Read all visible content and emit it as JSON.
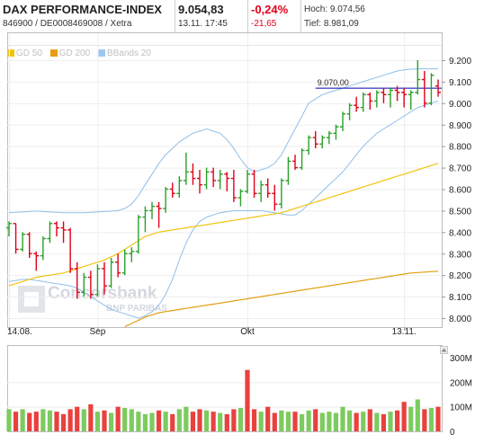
{
  "header": {
    "name": "DAX PERFORMANCE-INDEX",
    "ids": "846900 / DE0008469008 / Xetra",
    "price": "9.054,83",
    "datetime": "13.11. 17:45",
    "change_pct": "-0,24%",
    "change_abs": "-21,65",
    "high": "Hoch: 9.074,56",
    "low": "Tief: 8.981,09"
  },
  "legend": [
    {
      "label": "GD 50",
      "color": "#f2c40f"
    },
    {
      "label": "GD 200",
      "color": "#e89d0f"
    },
    {
      "label": "BBands 20",
      "color": "#9fc7ee"
    }
  ],
  "watermark": {
    "brand": "Consorsbank",
    "sub": "BNP PARIBAS"
  },
  "chart_data": [
    {
      "type": "ohlc",
      "x_ticks": [
        {
          "label": "14.08.",
          "index": 0
        },
        {
          "label": "Sep",
          "index": 13
        },
        {
          "label": "Okt",
          "index": 35
        },
        {
          "label": "13.11.",
          "index": 58
        }
      ],
      "y_ticks": [
        "9.200",
        "9.100",
        "9.000",
        "8.900",
        "8.800",
        "8.700",
        "8.600",
        "8.500",
        "8.400",
        "8.300",
        "8.200",
        "8.100",
        "8.000"
      ],
      "ylim": [
        8000,
        9200
      ],
      "annotation": {
        "label": "9.070,00",
        "value": 9070,
        "color": "#0000b0"
      },
      "up_color": "#2aa02a",
      "down_color": "#e2001a",
      "ohlc": [
        [
          8420,
          8450,
          8380,
          8440
        ],
        [
          8440,
          8440,
          8300,
          8320
        ],
        [
          8320,
          8400,
          8310,
          8390
        ],
        [
          8390,
          8400,
          8280,
          8300
        ],
        [
          8300,
          8310,
          8220,
          8290
        ],
        [
          8290,
          8380,
          8270,
          8370
        ],
        [
          8370,
          8450,
          8350,
          8440
        ],
        [
          8440,
          8450,
          8380,
          8420
        ],
        [
          8420,
          8450,
          8350,
          8410
        ],
        [
          8410,
          8420,
          8210,
          8230
        ],
        [
          8230,
          8260,
          8090,
          8120
        ],
        [
          8120,
          8210,
          8100,
          8190
        ],
        [
          8190,
          8220,
          8090,
          8110
        ],
        [
          8110,
          8250,
          8100,
          8230
        ],
        [
          8230,
          8260,
          8110,
          8150
        ],
        [
          8150,
          8280,
          8140,
          8260
        ],
        [
          8260,
          8300,
          8190,
          8210
        ],
        [
          8210,
          8320,
          8200,
          8300
        ],
        [
          8300,
          8330,
          8260,
          8310
        ],
        [
          8310,
          8480,
          8300,
          8470
        ],
        [
          8470,
          8520,
          8400,
          8500
        ],
        [
          8500,
          8540,
          8460,
          8520
        ],
        [
          8520,
          8540,
          8420,
          8510
        ],
        [
          8510,
          8610,
          8490,
          8600
        ],
        [
          8600,
          8630,
          8560,
          8580
        ],
        [
          8580,
          8660,
          8560,
          8640
        ],
        [
          8640,
          8770,
          8620,
          8680
        ],
        [
          8680,
          8720,
          8620,
          8650
        ],
        [
          8650,
          8690,
          8580,
          8620
        ],
        [
          8620,
          8700,
          8600,
          8680
        ],
        [
          8680,
          8700,
          8610,
          8640
        ],
        [
          8640,
          8690,
          8600,
          8670
        ],
        [
          8670,
          8680,
          8590,
          8650
        ],
        [
          8650,
          8690,
          8540,
          8560
        ],
        [
          8560,
          8600,
          8520,
          8590
        ],
        [
          8590,
          8690,
          8580,
          8670
        ],
        [
          8670,
          8690,
          8560,
          8580
        ],
        [
          8580,
          8640,
          8540,
          8620
        ],
        [
          8620,
          8650,
          8560,
          8580
        ],
        [
          8580,
          8620,
          8500,
          8530
        ],
        [
          8530,
          8650,
          8510,
          8640
        ],
        [
          8640,
          8750,
          8620,
          8730
        ],
        [
          8730,
          8760,
          8690,
          8700
        ],
        [
          8700,
          8790,
          8690,
          8780
        ],
        [
          8780,
          8850,
          8760,
          8840
        ],
        [
          8840,
          8870,
          8790,
          8810
        ],
        [
          8810,
          8850,
          8790,
          8840
        ],
        [
          8840,
          8870,
          8810,
          8860
        ],
        [
          8860,
          8900,
          8830,
          8890
        ],
        [
          8890,
          8960,
          8870,
          8950
        ],
        [
          8950,
          9000,
          8920,
          8990
        ],
        [
          8990,
          9030,
          8960,
          8980
        ],
        [
          8980,
          9050,
          8960,
          9040
        ],
        [
          9040,
          9050,
          8970,
          9010
        ],
        [
          9010,
          9060,
          8980,
          9050
        ],
        [
          9050,
          9070,
          9000,
          9040
        ],
        [
          9040,
          9070,
          8980,
          9060
        ],
        [
          9060,
          9080,
          9010,
          9050
        ],
        [
          9050,
          9070,
          8980,
          9040
        ],
        [
          9040,
          9060,
          8970,
          9050
        ],
        [
          9050,
          9200,
          9040,
          9110
        ],
        [
          9110,
          9150,
          8980,
          9000
        ],
        [
          9000,
          9140,
          8990,
          9130
        ],
        [
          9080,
          9110,
          9030,
          9050
        ]
      ],
      "bbands": {
        "upper": [
          8490,
          8492,
          8494,
          8496,
          8498,
          8496,
          8494,
          8492,
          8490,
          8490,
          8490,
          8490,
          8492,
          8494,
          8496,
          8498,
          8500,
          8510,
          8530,
          8570,
          8620,
          8670,
          8720,
          8760,
          8790,
          8820,
          8840,
          8860,
          8870,
          8880,
          8870,
          8860,
          8830,
          8790,
          8740,
          8700,
          8680,
          8690,
          8700,
          8720,
          8760,
          8820,
          8880,
          8940,
          9000,
          9020,
          9040,
          9050,
          9060,
          9070,
          9080,
          9090,
          9100,
          9110,
          9120,
          9130,
          9140,
          9150,
          9155,
          9158,
          9160,
          9160,
          9160,
          9160
        ],
        "lower": [
          8170,
          8175,
          8180,
          8180,
          8175,
          8170,
          8165,
          8160,
          8155,
          8150,
          8140,
          8120,
          8100,
          8080,
          8060,
          8040,
          8030,
          8020,
          8010,
          8000,
          8010,
          8030,
          8060,
          8110,
          8180,
          8270,
          8350,
          8410,
          8450,
          8470,
          8480,
          8490,
          8495,
          8500,
          8500,
          8500,
          8500,
          8500,
          8495,
          8490,
          8485,
          8480,
          8480,
          8500,
          8530,
          8560,
          8590,
          8620,
          8650,
          8680,
          8720,
          8760,
          8800,
          8830,
          8860,
          8880,
          8900,
          8920,
          8940,
          8960,
          8980,
          8990,
          9000,
          9010
        ]
      },
      "ma50": [
        8150,
        8160,
        8170,
        8180,
        8190,
        8195,
        8200,
        8205,
        8210,
        8220,
        8230,
        8240,
        8250,
        8260,
        8270,
        8285,
        8300,
        8320,
        8340,
        8360,
        8380,
        8390,
        8400,
        8405,
        8410,
        8415,
        8420,
        8425,
        8430,
        8435,
        8440,
        8445,
        8450,
        8455,
        8460,
        8465,
        8470,
        8475,
        8480,
        8485,
        8490,
        8500,
        8510,
        8520,
        8530,
        8540,
        8550,
        8560,
        8570,
        8580,
        8590,
        8600,
        8610,
        8620,
        8630,
        8640,
        8650,
        8660,
        8670,
        8680,
        8690,
        8700,
        8710,
        8720
      ],
      "ma200": [
        8000,
        8000,
        8000,
        8000,
        8000,
        8000,
        8000,
        8000,
        8000,
        8000,
        8000,
        8000,
        8000,
        8000,
        8000,
        8000,
        7940,
        7960,
        7975,
        7990,
        8005,
        8015,
        8025,
        8030,
        8035,
        8040,
        8045,
        8050,
        8055,
        8060,
        8065,
        8070,
        8075,
        8080,
        8085,
        8090,
        8095,
        8100,
        8105,
        8110,
        8115,
        8120,
        8125,
        8130,
        8135,
        8140,
        8145,
        8150,
        8155,
        8160,
        8165,
        8170,
        8175,
        8180,
        8185,
        8190,
        8195,
        8200,
        8205,
        8210,
        8212,
        8214,
        8216,
        8218
      ],
      "ma200_start_index": 16
    },
    {
      "type": "bar",
      "y_ticks": [
        "300M",
        "200M",
        "100M",
        "0"
      ],
      "ylim": [
        0,
        300
      ],
      "volume": [
        90,
        80,
        90,
        75,
        80,
        90,
        85,
        80,
        70,
        90,
        100,
        90,
        110,
        80,
        85,
        75,
        100,
        95,
        90,
        80,
        70,
        75,
        85,
        80,
        70,
        90,
        100,
        80,
        90,
        85,
        80,
        75,
        70,
        90,
        95,
        250,
        90,
        80,
        100,
        75,
        85,
        80,
        80,
        70,
        85,
        90,
        75,
        80,
        75,
        100,
        85,
        75,
        80,
        90,
        75,
        70,
        80,
        85,
        120,
        100,
        130,
        90,
        95,
        100
      ],
      "volume_up": [
        true,
        false,
        true,
        false,
        false,
        true,
        true,
        false,
        false,
        false,
        false,
        true,
        false,
        true,
        false,
        true,
        false,
        true,
        true,
        true,
        true,
        true,
        false,
        true,
        false,
        true,
        true,
        false,
        false,
        true,
        false,
        true,
        false,
        false,
        true,
        false,
        false,
        true,
        false,
        false,
        true,
        true,
        false,
        true,
        true,
        false,
        true,
        true,
        true,
        true,
        true,
        false,
        true,
        false,
        true,
        false,
        true,
        false,
        false,
        true,
        true,
        false,
        true,
        false
      ]
    }
  ]
}
